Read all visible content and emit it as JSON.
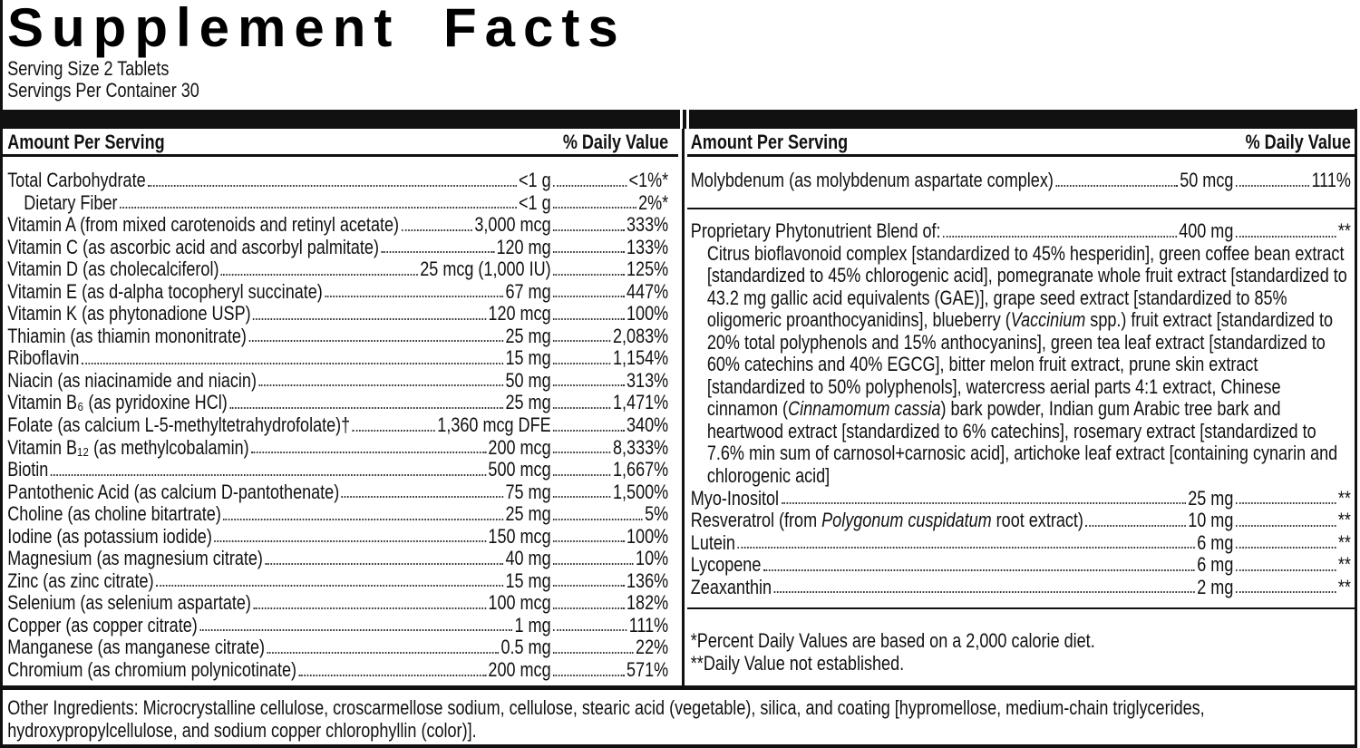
{
  "title": "Supplement Facts",
  "serving_size": "Serving Size 2 Tablets",
  "servings_per_container": "Servings Per Container 30",
  "left_panel": {
    "header": {
      "amount": "Amount Per Serving",
      "daily_value": "% Daily Value"
    },
    "rows": [
      {
        "name": "Total Carbohydrate",
        "amount": "<1 g",
        "daily_value": "<1%*"
      },
      {
        "name": "Dietary Fiber",
        "amount": "<1 g",
        "daily_value": "2%*"
      },
      {
        "name": "Vitamin A (from mixed carotenoids and retinyl acetate)",
        "amount": "3,000 mcg",
        "daily_value": "333%"
      },
      {
        "name": "Vitamin C (as ascorbic acid and ascorbyl palmitate)",
        "amount": "120 mg",
        "daily_value": "133%"
      },
      {
        "name": "Vitamin D (as cholecalciferol)",
        "amount": "25 mcg (1,000 IU)",
        "daily_value": "125%"
      },
      {
        "name": "Vitamin E (as d-alpha tocopheryl succinate)",
        "amount": "67 mg",
        "daily_value": "447%"
      },
      {
        "name": "Vitamin K (as phytonadione USP)",
        "amount": "120 mcg",
        "daily_value": "100%"
      },
      {
        "name": "Thiamin (as thiamin mononitrate)",
        "amount": "25 mg",
        "daily_value": "2,083%"
      },
      {
        "name": "Riboflavin",
        "amount": "15 mg",
        "daily_value": "1,154%"
      },
      {
        "name": "Niacin (as niacinamide and niacin)",
        "amount": "50 mg",
        "daily_value": "313%"
      },
      {
        "name": "Vitamin B₆ (as pyridoxine HCl)",
        "amount": "25 mg",
        "daily_value": "1,471%"
      },
      {
        "name": "Folate (as calcium L-5-methyltetrahydrofolate)†",
        "amount": "1,360 mcg DFE",
        "daily_value": "340%"
      },
      {
        "name": "Vitamin B₁₂ (as methylcobalamin)",
        "amount": "200 mcg",
        "daily_value": "8,333%"
      },
      {
        "name": "Biotin",
        "amount": "500 mcg",
        "daily_value": "1,667%"
      },
      {
        "name": "Pantothenic Acid (as calcium D-pantothenate)",
        "amount": "75 mg",
        "daily_value": "1,500%"
      },
      {
        "name": "Choline (as choline bitartrate)",
        "amount": "25 mg",
        "daily_value": "5%"
      },
      {
        "name": "Iodine (as potassium iodide)",
        "amount": "150 mcg",
        "daily_value": "100%"
      },
      {
        "name": "Magnesium (as magnesium citrate)",
        "amount": "40 mg",
        "daily_value": "10%"
      },
      {
        "name": "Zinc (as zinc citrate)",
        "amount": "15 mg",
        "daily_value": "136%"
      },
      {
        "name": "Selenium (as selenium aspartate)",
        "amount": "100 mcg",
        "daily_value": "182%"
      },
      {
        "name": "Copper (as copper citrate)",
        "amount": "1 mg",
        "daily_value": "111%"
      },
      {
        "name": "Manganese (as manganese citrate)",
        "amount": "0.5 mg",
        "daily_value": "22%"
      },
      {
        "name": "Chromium (as chromium polynicotinate)",
        "amount": "200 mcg",
        "daily_value": "571%"
      }
    ]
  },
  "right_panel": {
    "header": {
      "amount": "Amount Per Serving",
      "daily_value": "% Daily Value"
    },
    "rows": [
      {
        "name": "Molybdenum (as molybdenum aspartate complex)",
        "amount": "50 mcg",
        "daily_value": "111%"
      }
    ],
    "blend": {
      "name": "Proprietary Phytonutrient Blend of:",
      "amount": "400 mg",
      "daily_value": "**",
      "description": [
        "Citrus bioflavonoid complex [standardized to 45% hesperidin], green coffee bean extract [standardized to 45% chlorogenic acid], pomegranate whole fruit extract [standardized to 43.2 mg gallic acid equivalents (GAE)], grape seed extract [standardized to 85% oligomeric proanthocyanidins], blueberry (",
        "Vaccinium",
        " spp.) fruit extract [standardized to 20% total polyphenols and 15% anthocyanins], green tea leaf extract [standardized to 60% catechins and 40% EGCG], bitter melon fruit extract, prune skin extract [standardized to 50% polyphenols], watercress aerial parts 4:1 extract, Chinese cinnamon (",
        "Cinnamomum cassia",
        ") bark powder, Indian gum Arabic tree bark and heartwood extract [standardized to 6% catechins], rosemary extract [standardized to 7.6% min sum of carnosol+carnosic acid], artichoke leaf extract [containing cynarin and chlorogenic acid]"
      ]
    },
    "other_rows": [
      {
        "name": "Myo-Inositol",
        "amount": "25 mg",
        "daily_value": "**"
      },
      {
        "name": [
          "Resveratrol (from ",
          "Polygonum cuspidatum",
          " root extract)"
        ],
        "amount": "10 mg",
        "daily_value": "**"
      },
      {
        "name": "Lutein",
        "amount": "6 mg",
        "daily_value": "**"
      },
      {
        "name": "Lycopene",
        "amount": "6 mg",
        "daily_value": "**"
      },
      {
        "name": "Zeaxanthin",
        "amount": "2 mg",
        "daily_value": "**"
      }
    ],
    "footnotes": [
      "*Percent Daily Values are based on a 2,000 calorie diet.",
      "**Daily Value not established."
    ]
  },
  "other_ingredients": "Other Ingredients: Microcrystalline cellulose, croscarmellose sodium, cellulose, stearic acid (vegetable), silica, and coating [hypromellose, medium-chain triglycerides, hydroxypropylcellulose, and sodium copper chlorophyllin (color)]."
}
